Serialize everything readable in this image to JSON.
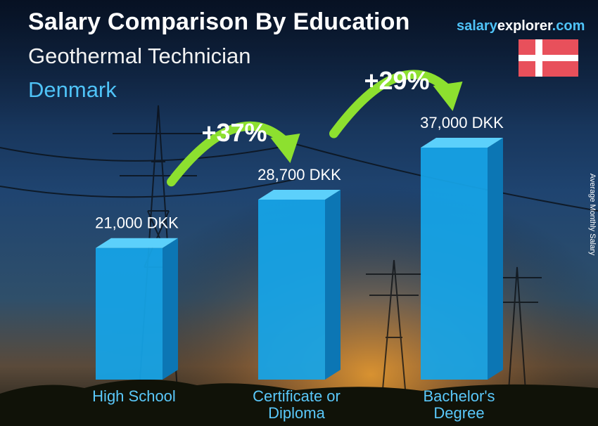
{
  "header": {
    "title": "Salary Comparison By Education",
    "subtitle": "Geothermal Technician",
    "country": "Denmark",
    "site_part1": "salary",
    "site_part2": "explorer",
    "site_part3": ".com"
  },
  "colors": {
    "bar_front": "#16a5e8",
    "bar_side": "#0c76b4",
    "bar_top": "#5cd0fb",
    "arrow": "#8de02f",
    "category_label": "#5ac8fa",
    "flag_red": "#e8505b",
    "flag_white": "#ffffff"
  },
  "chart_data": {
    "type": "bar",
    "title": "Salary Comparison By Education",
    "ylabel": "Average Monthly Salary",
    "unit": "DKK",
    "ylim": [
      0,
      37000
    ],
    "grid": false,
    "categories": [
      [
        "High School"
      ],
      [
        "Certificate or",
        "Diploma"
      ],
      [
        "Bachelor's",
        "Degree"
      ]
    ],
    "values": [
      21000,
      28700,
      37000
    ],
    "value_labels": [
      "21,000 DKK",
      "28,700 DKK",
      "37,000 DKK"
    ],
    "increases": [
      {
        "from": 0,
        "to": 1,
        "label": "+37%"
      },
      {
        "from": 1,
        "to": 2,
        "label": "+29%"
      }
    ]
  }
}
